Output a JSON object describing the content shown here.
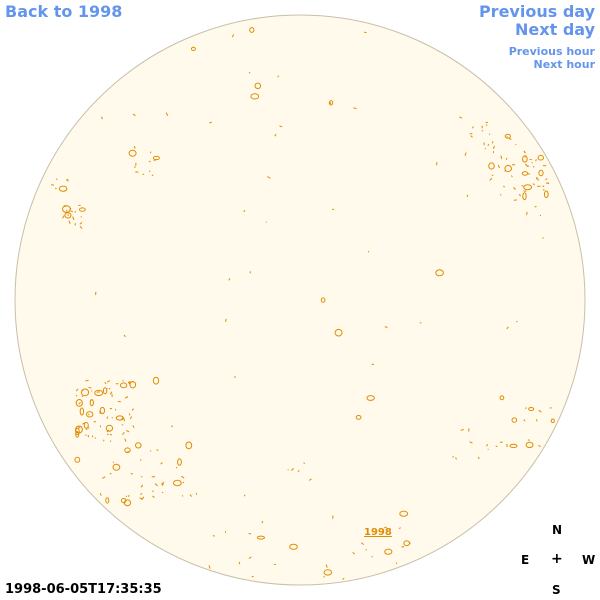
{
  "nav": {
    "back_label": "Back to 1998",
    "prev_day_label": "Previous day",
    "next_day_label": "Next day",
    "prev_hour_label": "Previous hour",
    "next_hour_label": "Next hour"
  },
  "timestamp": "1998-06-05T17:35:35",
  "year_link": "1998",
  "compass": {
    "north": "N",
    "east": "E",
    "center": "+",
    "west": "W",
    "south": "S"
  },
  "colors": {
    "disk_fill": "#fffaeb",
    "disk_stroke": "#c8bfa8",
    "feature": "#e08b00",
    "link": "#6495ed"
  }
}
